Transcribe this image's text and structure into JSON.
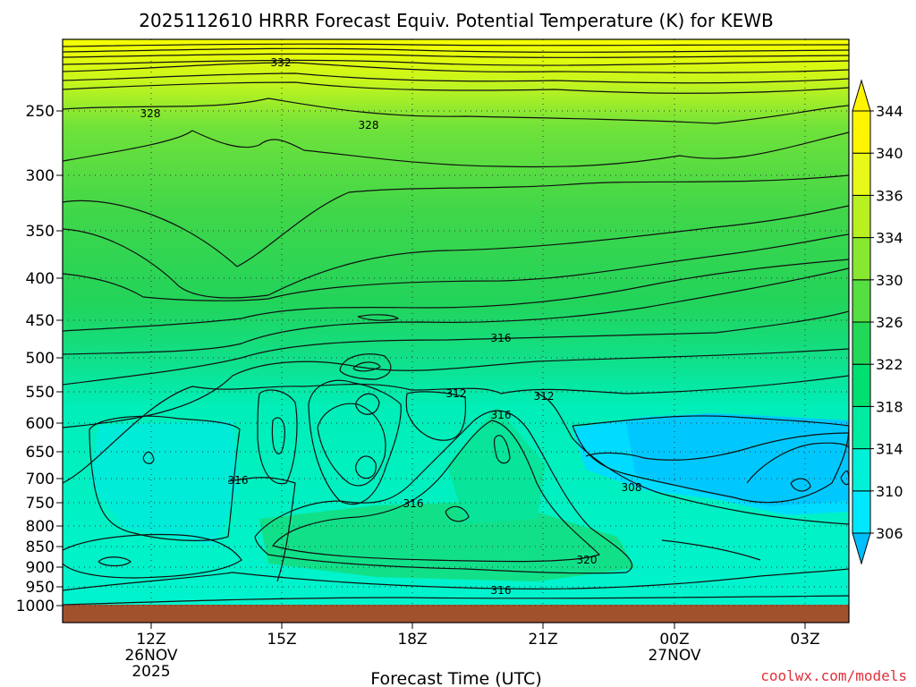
{
  "chart_data": {
    "type": "heatmap",
    "title": "2025112610 HRRR Forecast Equiv. Potential Temperature (K) for KEWB",
    "xlabel": "Forecast Time (UTC)",
    "ylabel": "",
    "y_ticks": [
      "250",
      "300",
      "350",
      "400",
      "450",
      "500",
      "550",
      "600",
      "650",
      "700",
      "750",
      "800",
      "850",
      "900",
      "950",
      "1000"
    ],
    "x_ticks": [
      {
        "label": "12Z",
        "date": "26NOV",
        "year": "2025",
        "hour_offset": 0
      },
      {
        "label": "15Z",
        "date": "",
        "year": "",
        "hour_offset": 3
      },
      {
        "label": "18Z",
        "date": "",
        "year": "",
        "hour_offset": 6
      },
      {
        "label": "21Z",
        "date": "",
        "year": "",
        "hour_offset": 9
      },
      {
        "label": "00Z",
        "date": "27NOV",
        "year": "",
        "hour_offset": 12
      },
      {
        "label": "03Z",
        "date": "",
        "year": "",
        "hour_offset": 15
      }
    ],
    "colorbar": {
      "levels": [
        306,
        310,
        314,
        318,
        322,
        326,
        330,
        334,
        336,
        340,
        344
      ],
      "colors": [
        "#00bfff",
        "#00e8ff",
        "#00f0d8",
        "#00eca0",
        "#00e070",
        "#22d858",
        "#55df40",
        "#88e830",
        "#b8f020",
        "#e8f818",
        "#fff500"
      ]
    },
    "contour_labels": [
      "332",
      "328",
      "328",
      "316",
      "312",
      "312",
      "316",
      "316",
      "308",
      "316",
      "320",
      "316"
    ],
    "surface_color": "#a0522d",
    "credit": "coolwx.com/models"
  }
}
